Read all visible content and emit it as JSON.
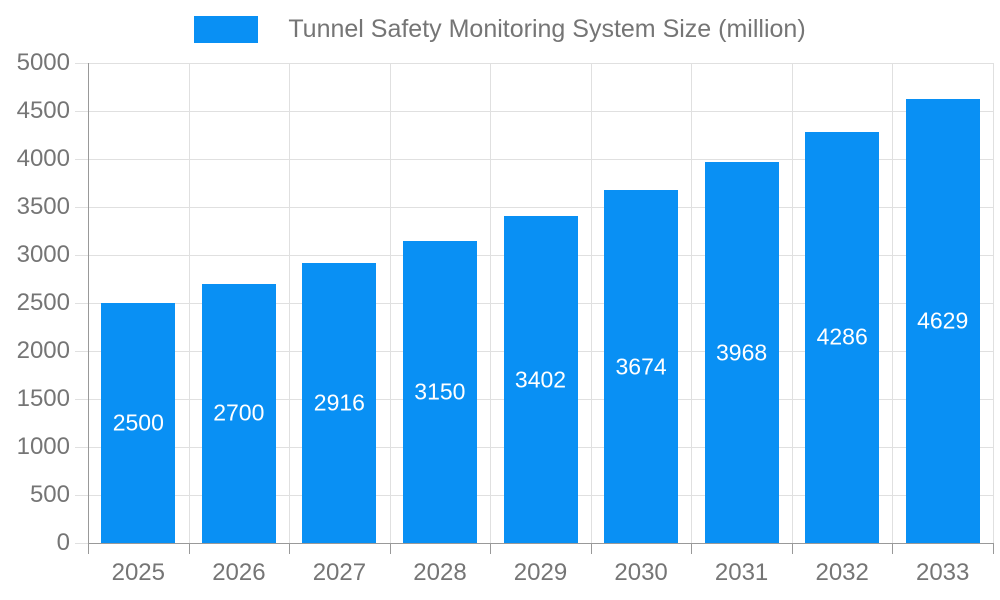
{
  "chart_data": {
    "type": "bar",
    "title": "Tunnel Safety Monitoring System Size (million)",
    "legend_label": "Tunnel Safety Monitoring System Size (million)",
    "categories": [
      "2025",
      "2026",
      "2027",
      "2028",
      "2029",
      "2030",
      "2031",
      "2032",
      "2033"
    ],
    "series": [
      {
        "name": "Tunnel Safety Monitoring System Size (million)",
        "values": [
          2500,
          2700,
          2916,
          3150,
          3402,
          3674,
          3968,
          4286,
          4629
        ]
      }
    ],
    "value_labels_shown": true,
    "xlabel": "",
    "ylabel": "",
    "ylim": [
      0,
      5000
    ],
    "ytick_step": 500,
    "grid": true,
    "legend_position": "top",
    "colors": {
      "bar": "#0990f4",
      "value_label": "#ffffff",
      "axis_text": "#757575",
      "grid_line": "#e0e0e0",
      "axis_line": "#999999"
    }
  }
}
